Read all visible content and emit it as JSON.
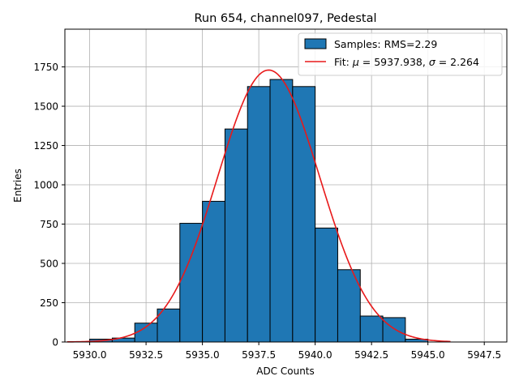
{
  "chart_data": {
    "type": "bar",
    "title": "Run 654, channel097, Pedestal",
    "xlabel": "ADC Counts",
    "ylabel": "Entries",
    "xlim": [
      5928.9,
      5948.5
    ],
    "ylim": [
      0,
      1990
    ],
    "grid": true,
    "legend_position": "top-right",
    "xticks": [
      5930.0,
      5932.5,
      5935.0,
      5937.5,
      5940.0,
      5942.5,
      5945.0,
      5947.5
    ],
    "xtick_labels": [
      "5930.0",
      "5932.5",
      "5935.0",
      "5937.5",
      "5940.0",
      "5942.5",
      "5945.0",
      "5947.5"
    ],
    "yticks": [
      0,
      250,
      500,
      750,
      1000,
      1250,
      1500,
      1750
    ],
    "ytick_labels": [
      "0",
      "250",
      "500",
      "750",
      "1000",
      "1250",
      "1500",
      "1750"
    ],
    "bin_width": 1,
    "bins": [
      {
        "left": 5930,
        "value": 18
      },
      {
        "left": 5931,
        "value": 25
      },
      {
        "left": 5932,
        "value": 120
      },
      {
        "left": 5933,
        "value": 210
      },
      {
        "left": 5934,
        "value": 755
      },
      {
        "left": 5935,
        "value": 895
      },
      {
        "left": 5936,
        "value": 1355
      },
      {
        "left": 5937,
        "value": 1625
      },
      {
        "left": 5938,
        "value": 1670
      },
      {
        "left": 5939,
        "value": 1625
      },
      {
        "left": 5940,
        "value": 725
      },
      {
        "left": 5941,
        "value": 460
      },
      {
        "left": 5942,
        "value": 165
      },
      {
        "left": 5943,
        "value": 155
      },
      {
        "left": 5944,
        "value": 18
      }
    ],
    "fit": {
      "mu": 5937.938,
      "sigma": 2.264,
      "amplitude": 1730,
      "x_range": [
        5929,
        5946
      ],
      "color": "#e8191a"
    },
    "bar_color": "#1f77b4",
    "bar_edge_color": "#000000",
    "legend": {
      "hist_label": "Samples: RMS=2.29",
      "fit_label_prefix": "Fit: ",
      "fit_mu_symbol": "μ",
      "fit_mu_text": " = 5937.938, ",
      "fit_sigma_symbol": "σ",
      "fit_sigma_text": " = 2.264"
    }
  }
}
